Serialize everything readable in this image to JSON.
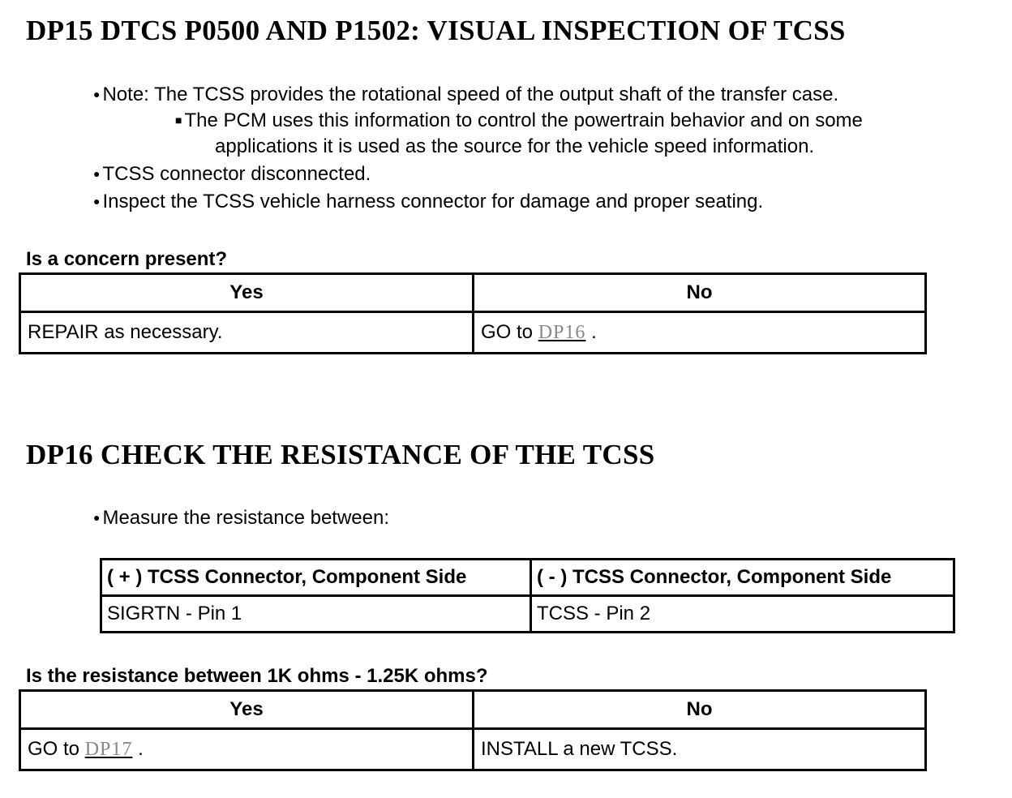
{
  "dp15": {
    "title": "DP15 DTCS P0500 AND P1502: VISUAL INSPECTION OF TCSS",
    "bullets": [
      "Note: The TCSS provides the rotational speed of the output shaft of the transfer case.",
      "TCSS connector disconnected.",
      "Inspect the TCSS vehicle harness connector for damage and proper seating."
    ],
    "sub_bullet_line1": "The PCM uses this information to control the powertrain behavior and on some",
    "sub_bullet_line2": "applications it is used as the source for the vehicle speed information.",
    "question": "Is a concern present?",
    "yes_header": "Yes",
    "no_header": "No",
    "yes_action": "REPAIR as necessary.",
    "no_action_prefix": "GO to",
    "no_action_link": "DP16",
    "no_action_suffix": "."
  },
  "dp16": {
    "title": "DP16 CHECK THE RESISTANCE OF THE TCSS",
    "bullet": "Measure the resistance between:",
    "table": {
      "headers": [
        "( + ) TCSS Connector, Component Side",
        "( - ) TCSS Connector, Component Side"
      ],
      "row": [
        "SIGRTN - Pin 1",
        "TCSS - Pin 2"
      ]
    },
    "question": "Is the resistance between 1K ohms - 1.25K ohms?",
    "yes_header": "Yes",
    "no_header": "No",
    "yes_action_prefix": "GO to",
    "yes_action_link": "DP17",
    "yes_action_suffix": ".",
    "no_action": "INSTALL a new TCSS."
  }
}
